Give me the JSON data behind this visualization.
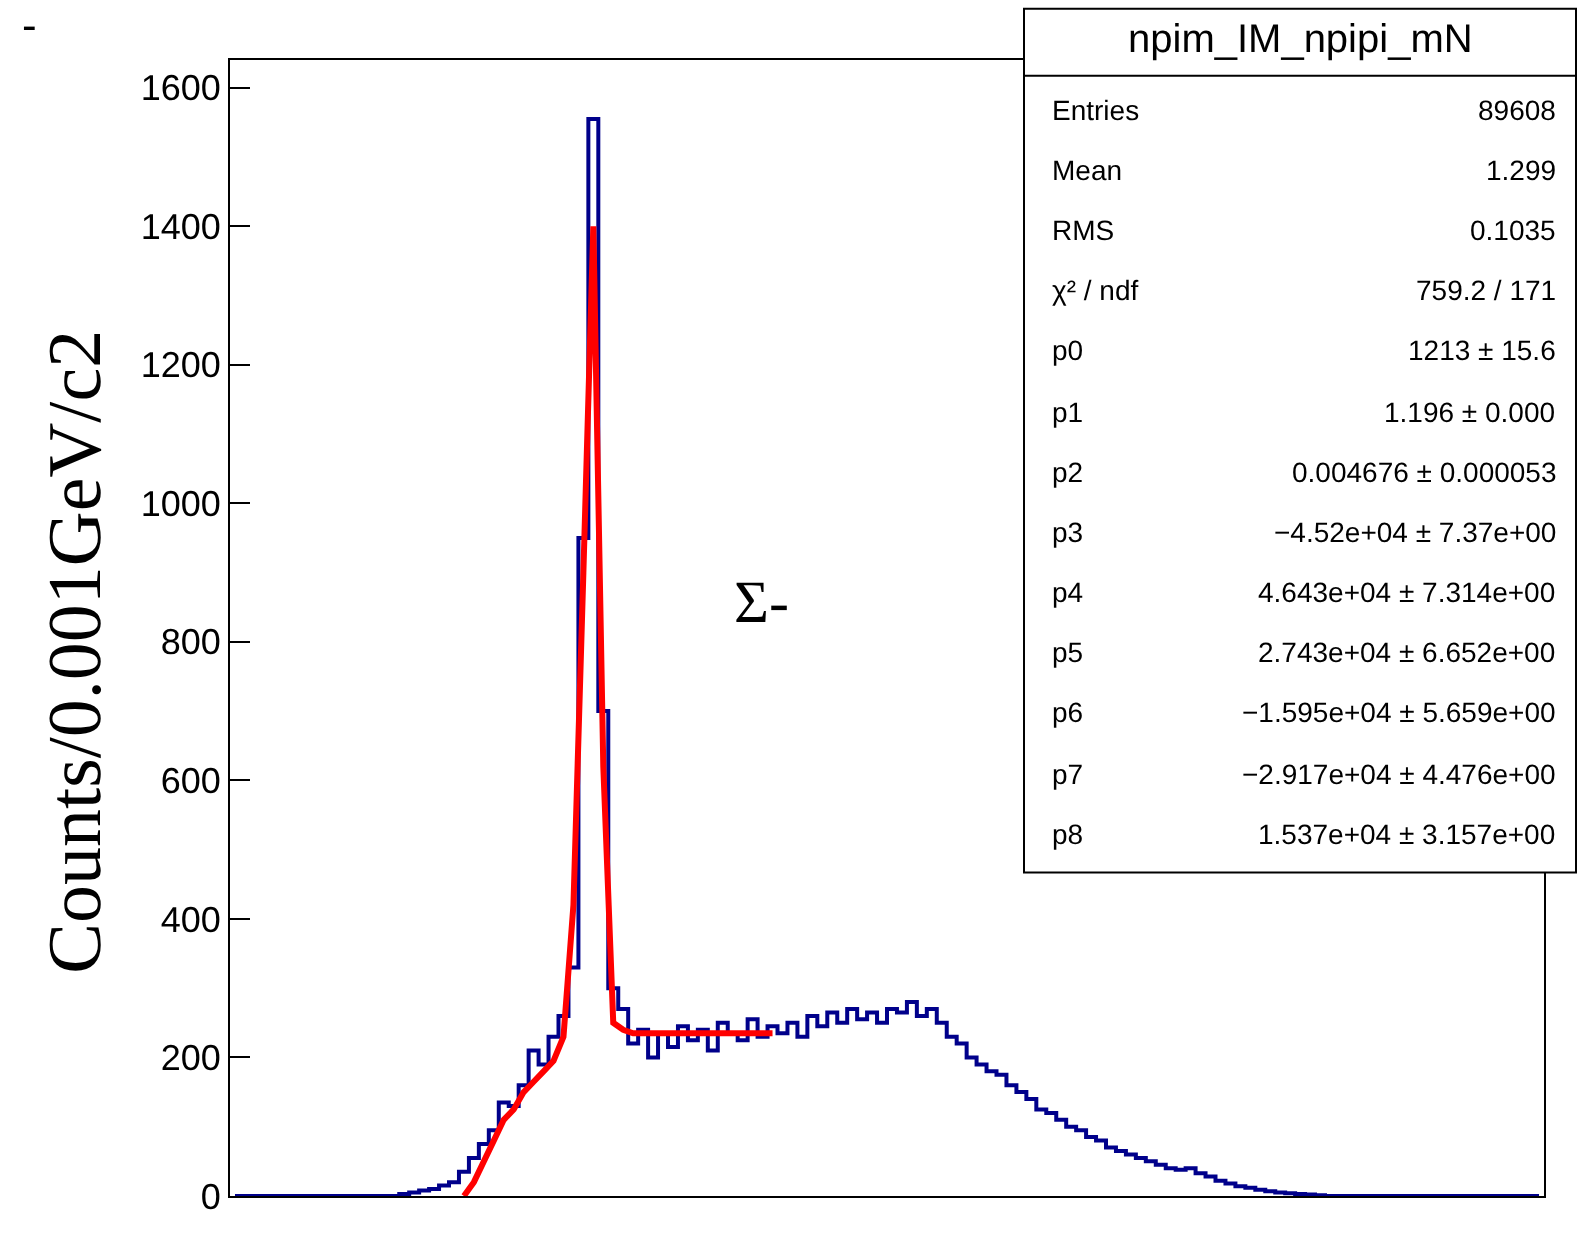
{
  "chart_data": {
    "type": "step",
    "ylabel": "Counts/0.001GeV/c2",
    "categories": [
      null,
      null,
      null,
      null,
      null,
      null,
      null,
      null,
      null,
      null,
      null,
      null,
      null,
      null,
      null,
      null,
      null,
      null,
      null,
      null,
      null,
      null,
      null,
      null,
      null,
      null,
      null,
      null,
      null,
      null,
      null,
      null,
      null,
      null,
      null,
      null,
      null,
      null,
      null,
      null,
      null,
      null,
      null,
      null,
      null,
      null,
      null,
      null,
      null,
      null,
      null,
      null,
      null,
      null,
      null,
      null,
      null,
      null,
      null,
      null,
      null,
      null,
      null,
      null,
      null,
      null,
      null,
      null,
      null,
      null,
      null,
      null,
      null,
      null,
      null,
      null,
      null,
      null,
      null,
      null,
      null,
      null,
      null,
      null,
      null,
      null,
      null,
      null,
      null,
      null,
      null,
      null,
      null,
      null,
      null,
      null,
      null,
      null,
      null,
      null,
      null,
      null,
      null,
      null,
      null,
      null,
      null,
      null,
      null,
      null,
      null,
      null,
      null,
      null,
      null,
      null,
      null,
      null,
      null,
      null,
      null,
      null,
      null,
      null,
      null,
      null,
      null,
      null,
      null,
      null,
      null,
      null
    ],
    "series": [
      {
        "color": "#00008b",
        "values": [
          0,
          0,
          0,
          0,
          0,
          0,
          0,
          0,
          0,
          0,
          0,
          0,
          0,
          0,
          0,
          0,
          0,
          3,
          5,
          8,
          10,
          15,
          20,
          35,
          55,
          75,
          95,
          135,
          130,
          160,
          210,
          190,
          230,
          260,
          330,
          950,
          1555,
          700,
          300,
          270,
          220,
          240,
          200,
          235,
          215,
          245,
          225,
          240,
          210,
          250,
          235,
          225,
          255,
          230,
          245,
          235,
          250,
          230,
          260,
          245,
          265,
          250,
          270,
          255,
          265,
          250,
          270,
          265,
          280,
          260,
          270,
          250,
          230,
          220,
          200,
          190,
          180,
          175,
          160,
          150,
          140,
          125,
          120,
          110,
          100,
          95,
          85,
          80,
          70,
          65,
          60,
          55,
          50,
          45,
          40,
          38,
          40,
          33,
          28,
          22,
          18,
          14,
          12,
          9,
          7,
          5,
          4,
          3,
          2,
          1,
          0,
          0,
          0,
          0,
          0,
          0,
          0,
          0,
          0,
          0,
          0,
          0,
          0,
          0,
          0,
          0,
          0,
          0,
          0,
          0,
          0,
          0
        ]
      },
      {
        "type": "line",
        "color": "#ff0000",
        "values": [
          null,
          null,
          null,
          null,
          null,
          null,
          null,
          null,
          null,
          null,
          null,
          null,
          null,
          null,
          null,
          null,
          null,
          null,
          null,
          null,
          null,
          null,
          null,
          0,
          20,
          50,
          80,
          110,
          125,
          150,
          165,
          180,
          195,
          230,
          420,
          900,
          1400,
          620,
          250,
          240,
          235,
          235,
          235,
          235,
          235,
          235,
          235,
          235,
          235,
          235,
          235,
          235,
          235,
          235,
          235,
          null,
          null,
          null,
          null,
          null,
          null,
          null,
          null,
          null,
          null,
          null,
          null,
          null,
          null,
          null,
          null,
          null,
          null,
          null,
          null,
          null,
          null,
          null,
          null,
          null,
          null,
          null,
          null,
          null,
          null,
          null,
          null,
          null,
          null,
          null,
          null,
          null,
          null,
          null,
          null,
          null,
          null,
          null,
          null,
          null,
          null,
          null,
          null,
          null,
          null,
          null,
          null,
          null,
          null,
          null,
          null,
          null,
          null,
          null,
          null,
          null,
          null,
          null,
          null,
          null,
          null,
          null,
          null,
          null,
          null,
          null,
          null,
          null,
          null,
          null,
          null,
          null
        ]
      }
    ],
    "ylim": [
      0,
      1640
    ],
    "yticks": [
      0,
      200,
      400,
      600,
      800,
      1000,
      1200,
      1400,
      1600
    ],
    "legend": false,
    "tick_labels": "y",
    "annotations": [
      "-",
      "Σ-",
      "npim_IM_npipi_mN",
      "Entries",
      "89608",
      "Mean",
      "1.299",
      "RMS",
      "0.1035",
      "χ² / ndf",
      "759.2 / 171",
      "p0",
      "1213 ± 15.6",
      "p1",
      "1.196 ± 0.000",
      "p2",
      "0.004676 ± 0.000053",
      "p3",
      "−4.52e+04 ± 7.37e+00",
      "p4",
      "4.643e+04 ± 7.314e+00",
      "p5",
      "2.743e+04 ± 6.652e+00",
      "p6",
      "−1.595e+04 ± 5.659e+00",
      "p7",
      "−2.917e+04 ± 4.476e+00",
      "p8",
      "1.537e+04 ± 3.157e+00"
    ]
  }
}
